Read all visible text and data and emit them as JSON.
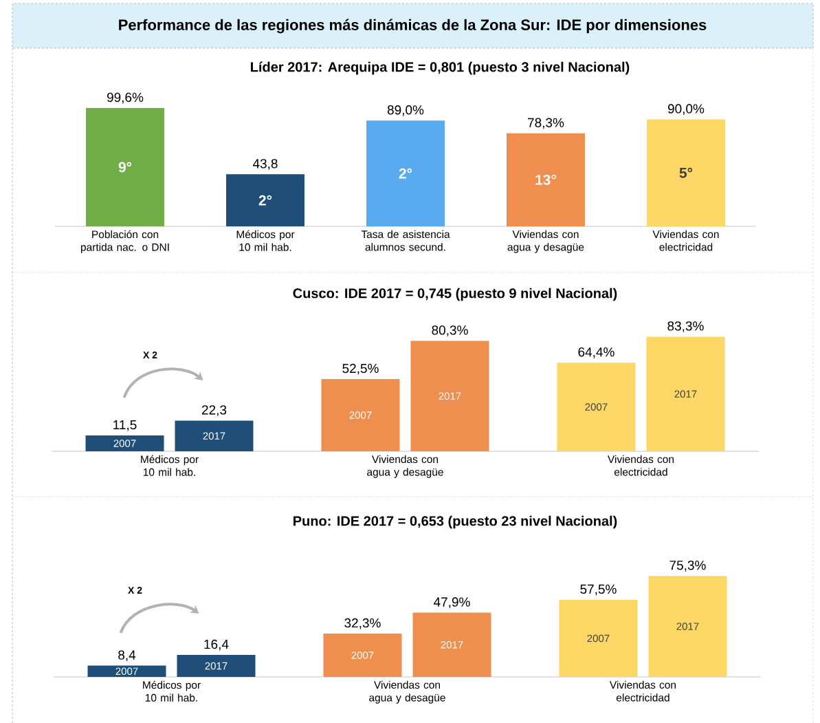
{
  "chart_data": [
    {
      "type": "bar",
      "title": "Performance de las regiones más dinámicas de la Zona Sur: IDE por dimensiones",
      "subtitle": "Líder 2017: Arequipa IDE = 0,801 (puesto 3 nivel Nacional)",
      "categories": [
        "Población con partida nac. o DNI",
        "Médicos por 10 mil hab.",
        "Tasa de asistencia alumnos secund.",
        "Viviendas con agua y desagüe",
        "Viviendas con electricidad"
      ],
      "values": [
        99.6,
        43.8,
        89.0,
        78.3,
        90.0
      ],
      "colors": [
        "#70ad47",
        "#1f4e79",
        "#5aaaf0",
        "#ef8f4f",
        "#fdd766"
      ],
      "value_labels": [
        "99,6%",
        "43,8",
        "89,0%",
        "78,3%",
        "90,0%"
      ],
      "annotations": [
        "9°",
        "2°",
        "2°",
        "13°",
        "5°"
      ]
    },
    {
      "type": "bar",
      "title": "Cusco: IDE 2017 = 0,745 (puesto 9 nivel Nacional)",
      "categories": [
        "Médicos por 10 mil hab.",
        "Viviendas con agua y desagüe",
        "Viviendas con electricidad"
      ],
      "series": [
        {
          "name": "2007",
          "colors": [
            "#1f4e79",
            "#ef8f4f",
            "#fdd766"
          ],
          "values": [
            11.5,
            52.5,
            64.4
          ],
          "value_labels": [
            "11,5",
            "52,5%",
            "64,4%"
          ]
        },
        {
          "name": "2017",
          "colors": [
            "#1f4e79",
            "#ef8f4f",
            "#fdd766"
          ],
          "values": [
            22.3,
            80.3,
            83.3
          ],
          "value_labels": [
            "22,3",
            "80,3%",
            "83,3%"
          ]
        }
      ],
      "annotations": [
        "X 2"
      ]
    },
    {
      "type": "bar",
      "title": "Puno: IDE 2017 = 0,653 (puesto 23 nivel Nacional)",
      "categories": [
        "Médicos por 10 mil hab.",
        "Viviendas con agua y desagüe",
        "Viviendas con electricidad"
      ],
      "series": [
        {
          "name": "2007",
          "colors": [
            "#1f4e79",
            "#ef8f4f",
            "#fdd766"
          ],
          "values": [
            8.4,
            32.3,
            57.5
          ],
          "value_labels": [
            "8,4",
            "32,3%",
            "57,5%"
          ]
        },
        {
          "name": "2017",
          "colors": [
            "#1f4e79",
            "#ef8f4f",
            "#fdd766"
          ],
          "values": [
            16.4,
            47.9,
            75.3
          ],
          "value_labels": [
            "16,4",
            "47,9%",
            "75,3%"
          ]
        }
      ],
      "annotations": [
        "X 2"
      ]
    }
  ]
}
